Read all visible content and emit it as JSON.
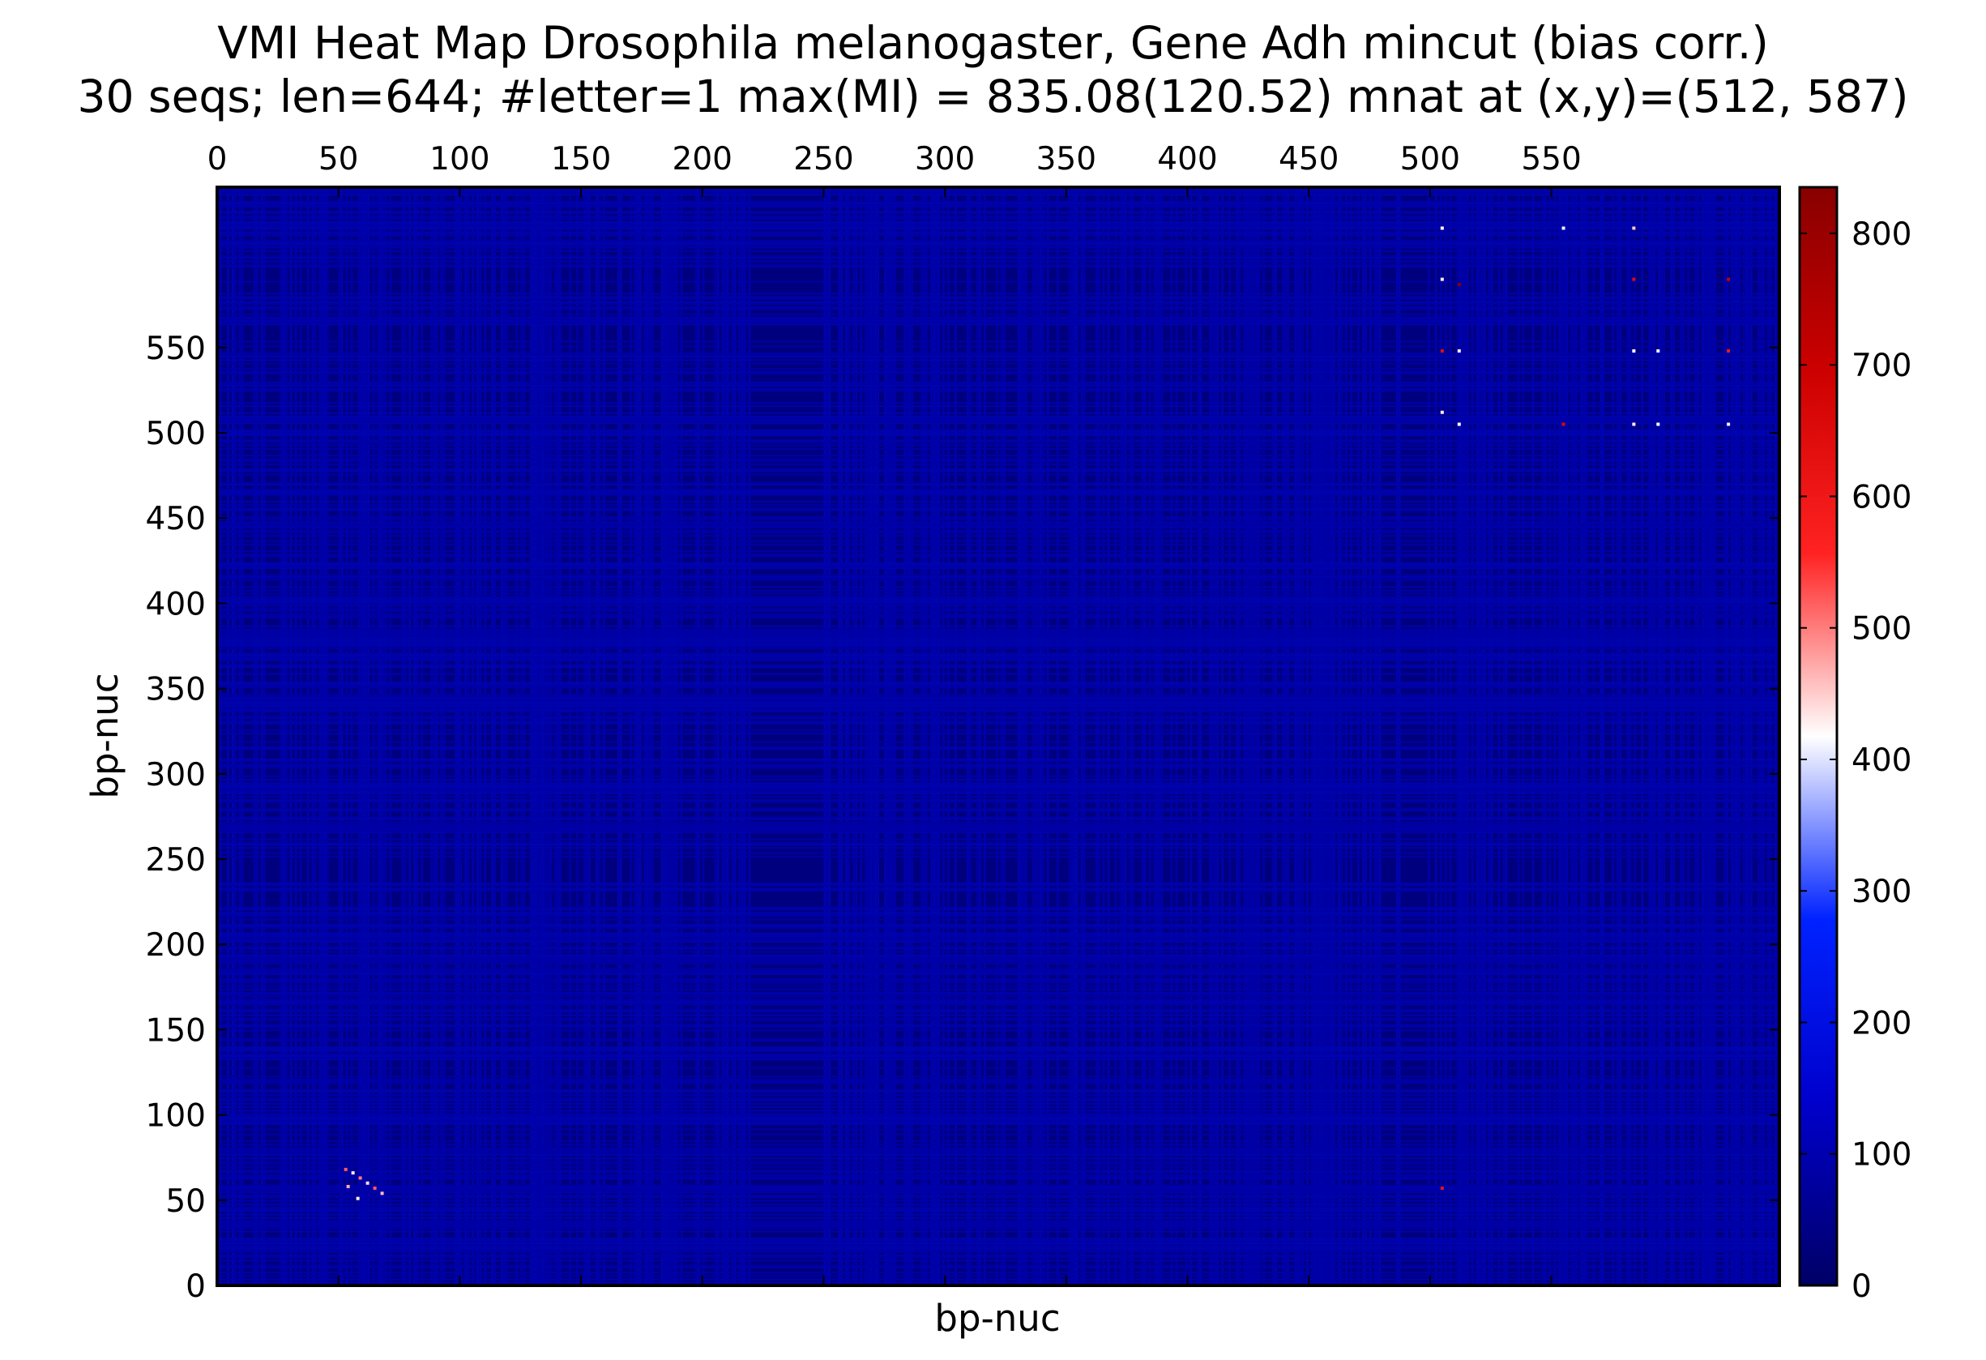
{
  "chart_data": {
    "type": "heatmap",
    "title": "VMI Heat Map Drosophila melanogaster, Gene Adh mincut (bias corr.)",
    "subtitle": "30 seqs; len=644; #letter=1 max(MI) = 835.08(120.52) mnat at (x,y)=(512, 587)",
    "xlabel": "bp-nuc",
    "ylabel": "bp-nuc",
    "xlim": [
      0,
      644
    ],
    "ylim": [
      0,
      644
    ],
    "x_ticks": [
      0,
      50,
      100,
      150,
      200,
      250,
      300,
      350,
      400,
      450,
      500,
      550
    ],
    "y_ticks": [
      0,
      50,
      100,
      150,
      200,
      250,
      300,
      350,
      400,
      450,
      500,
      550
    ],
    "x_axis_position": "top",
    "colorbar": {
      "range": [
        0,
        835.08
      ],
      "ticks": [
        0,
        100,
        200,
        300,
        400,
        500,
        600,
        700,
        800
      ],
      "colors": [
        "#000066",
        "#0000cc",
        "#0022ff",
        "#ffffff",
        "#ff2222",
        "#cc0000",
        "#880000"
      ],
      "position": "right"
    },
    "background_value": 60,
    "low_band_columns": [
      [
        224,
        246
      ],
      [
        490,
        496
      ]
    ],
    "low_band_rows": [
      [
        236,
        250
      ],
      [
        554,
        560
      ]
    ],
    "hotspots": [
      {
        "x": 512,
        "y": 587,
        "value": 835.08
      },
      {
        "x": 505,
        "y": 620,
        "value": 420
      },
      {
        "x": 505,
        "y": 590,
        "value": 430
      },
      {
        "x": 555,
        "y": 620,
        "value": 410
      },
      {
        "x": 584,
        "y": 620,
        "value": 450
      },
      {
        "x": 584,
        "y": 590,
        "value": 650
      },
      {
        "x": 623,
        "y": 590,
        "value": 700
      },
      {
        "x": 505,
        "y": 548,
        "value": 640
      },
      {
        "x": 512,
        "y": 548,
        "value": 430
      },
      {
        "x": 584,
        "y": 548,
        "value": 420
      },
      {
        "x": 594,
        "y": 548,
        "value": 410
      },
      {
        "x": 623,
        "y": 548,
        "value": 600
      },
      {
        "x": 505,
        "y": 512,
        "value": 430
      },
      {
        "x": 512,
        "y": 505,
        "value": 420
      },
      {
        "x": 555,
        "y": 505,
        "value": 660
      },
      {
        "x": 584,
        "y": 505,
        "value": 430
      },
      {
        "x": 594,
        "y": 505,
        "value": 420
      },
      {
        "x": 623,
        "y": 505,
        "value": 410
      },
      {
        "x": 505,
        "y": 57,
        "value": 620
      },
      {
        "x": 53,
        "y": 68,
        "value": 520
      },
      {
        "x": 56,
        "y": 66,
        "value": 430
      },
      {
        "x": 59,
        "y": 63,
        "value": 500
      },
      {
        "x": 62,
        "y": 60,
        "value": 440
      },
      {
        "x": 65,
        "y": 57,
        "value": 520
      },
      {
        "x": 68,
        "y": 54,
        "value": 460
      },
      {
        "x": 58,
        "y": 51,
        "value": 430
      },
      {
        "x": 54,
        "y": 58,
        "value": 470
      }
    ]
  }
}
